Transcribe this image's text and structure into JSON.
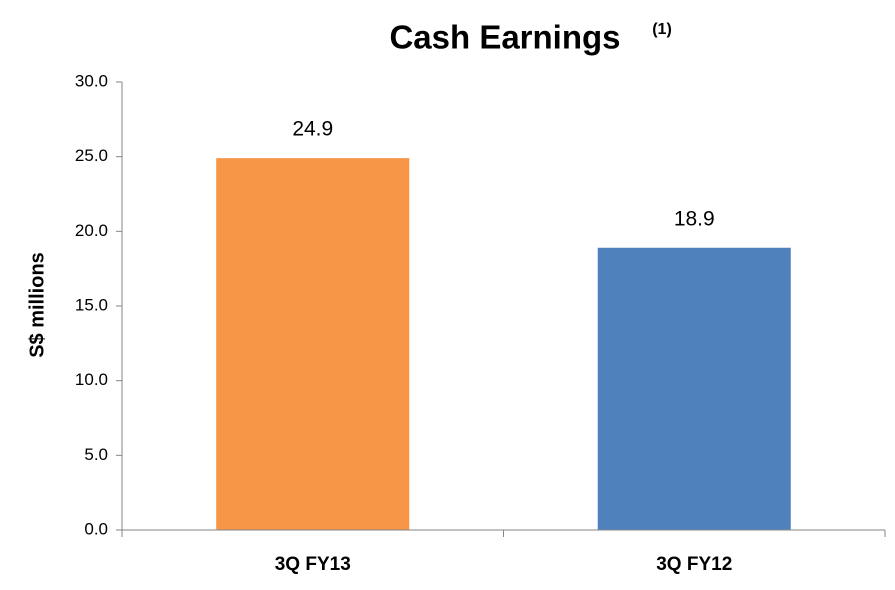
{
  "chart_data": {
    "type": "bar",
    "title": "Cash Earnings",
    "title_superscript": "(1)",
    "y_label": "S$ millions",
    "categories": [
      "3Q FY13",
      "3Q FY12"
    ],
    "values": [
      24.9,
      18.9
    ],
    "colors": [
      "#f79646",
      "#4f81bd"
    ],
    "ylim": [
      0,
      30
    ],
    "yticks": [
      {
        "value": 0,
        "label": "0.0"
      },
      {
        "value": 5,
        "label": "5.0"
      },
      {
        "value": 10,
        "label": "10.0"
      },
      {
        "value": 15,
        "label": "15.0"
      },
      {
        "value": 20,
        "label": "20.0"
      },
      {
        "value": 25,
        "label": "25.0"
      },
      {
        "value": 30,
        "label": "30.0"
      }
    ],
    "grid": false
  }
}
